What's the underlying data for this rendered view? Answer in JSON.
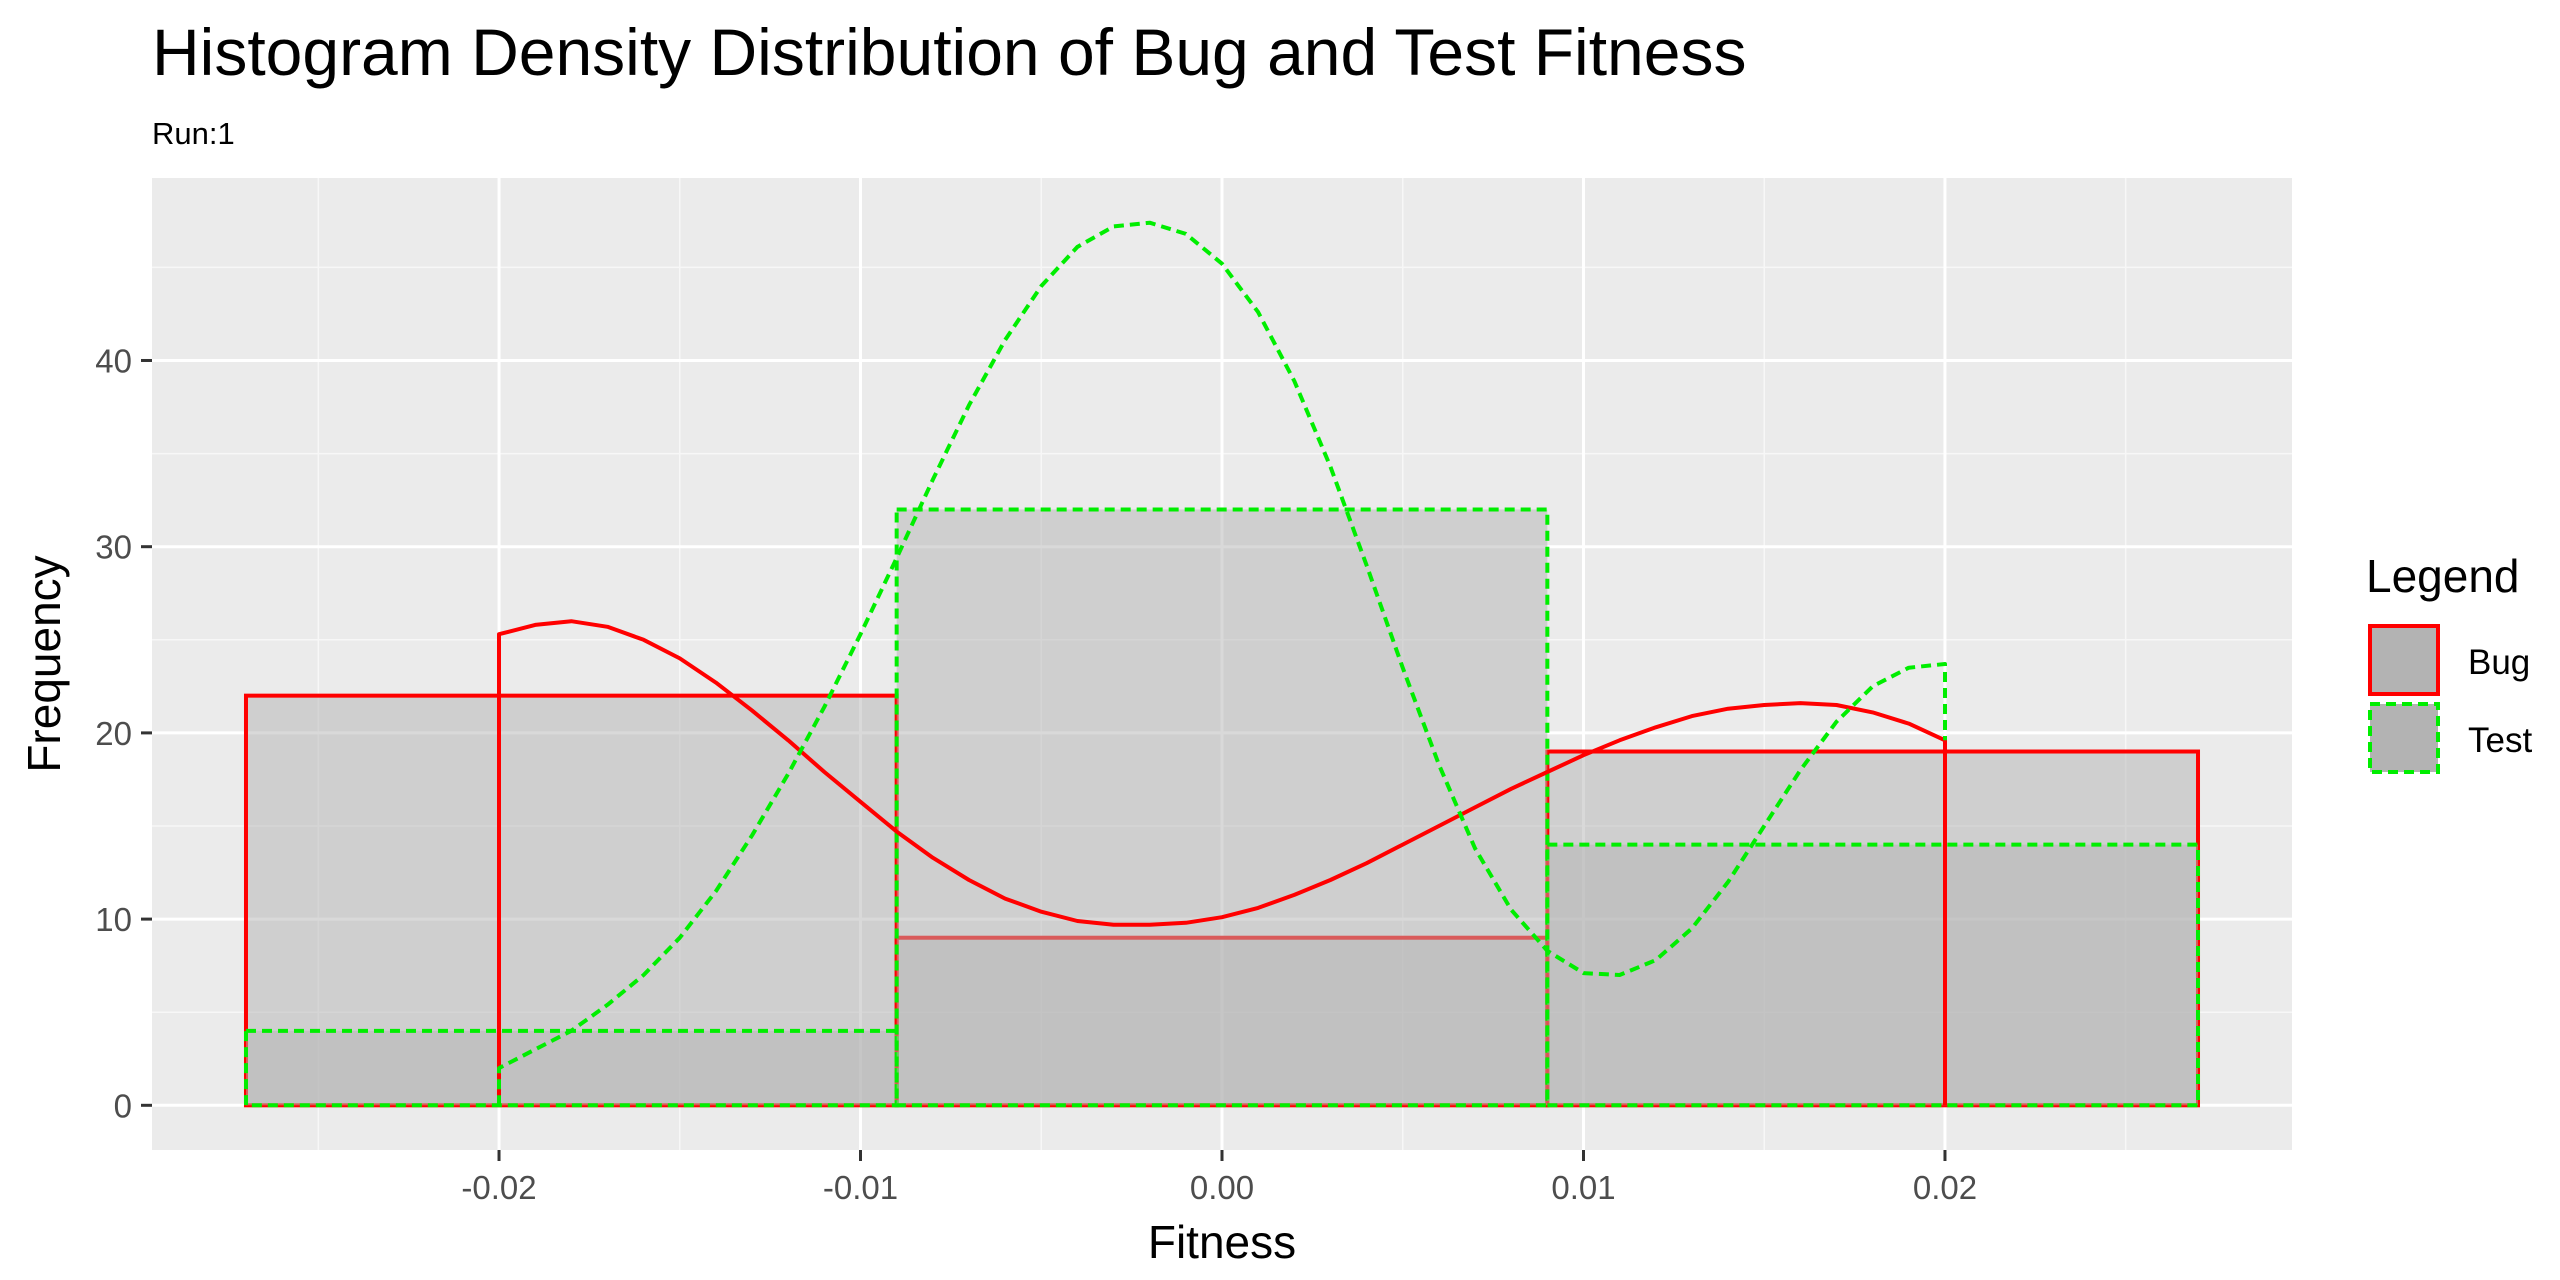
{
  "chart_data": {
    "type": "histogram",
    "title": "Histogram Density Distribution of Bug and Test Fitness",
    "subtitle": "Run:1",
    "xlabel": "Fitness",
    "ylabel": "Frequency",
    "xlim": [
      -0.0296,
      0.0296
    ],
    "ylim": [
      -2.4,
      49.8
    ],
    "x_ticks": [
      -0.02,
      -0.01,
      0.0,
      0.01,
      0.02
    ],
    "x_tick_labels": [
      "-0.02",
      "-0.01",
      "0.00",
      "0.01",
      "0.02"
    ],
    "y_ticks": [
      0,
      10,
      20,
      30,
      40
    ],
    "y_tick_labels": [
      "0",
      "10",
      "20",
      "30",
      "40"
    ],
    "grid": true,
    "legend": {
      "title": "Legend",
      "position": "right",
      "entries": [
        {
          "label": "Bug",
          "color": "#ff0000",
          "linetype": "solid"
        },
        {
          "label": "Test",
          "color": "#00ee00",
          "linetype": "dashed"
        }
      ]
    },
    "bar_fill": "#b3b3b3",
    "series": [
      {
        "name": "Bug",
        "color": "#ff0000",
        "linetype": "solid",
        "bins": [
          {
            "x0": -0.027,
            "x1": -0.009,
            "count": 22
          },
          {
            "x0": -0.009,
            "x1": 0.009,
            "count": 9
          },
          {
            "x0": 0.009,
            "x1": 0.027,
            "count": 19
          }
        ],
        "density_curve": [
          [
            -0.02,
            0.2
          ],
          [
            -0.02,
            25.3
          ],
          [
            -0.019,
            25.8
          ],
          [
            -0.018,
            26.0
          ],
          [
            -0.017,
            25.7
          ],
          [
            -0.016,
            25.0
          ],
          [
            -0.015,
            24.0
          ],
          [
            -0.014,
            22.7
          ],
          [
            -0.013,
            21.2
          ],
          [
            -0.012,
            19.6
          ],
          [
            -0.011,
            17.9
          ],
          [
            -0.01,
            16.3
          ],
          [
            -0.009,
            14.7
          ],
          [
            -0.008,
            13.3
          ],
          [
            -0.007,
            12.1
          ],
          [
            -0.006,
            11.1
          ],
          [
            -0.005,
            10.4
          ],
          [
            -0.004,
            9.9
          ],
          [
            -0.003,
            9.7
          ],
          [
            -0.002,
            9.7
          ],
          [
            -0.001,
            9.8
          ],
          [
            0.0,
            10.1
          ],
          [
            0.001,
            10.6
          ],
          [
            0.002,
            11.3
          ],
          [
            0.003,
            12.1
          ],
          [
            0.004,
            13.0
          ],
          [
            0.005,
            14.0
          ],
          [
            0.006,
            15.0
          ],
          [
            0.007,
            16.0
          ],
          [
            0.008,
            17.0
          ],
          [
            0.009,
            17.9
          ],
          [
            0.01,
            18.8
          ],
          [
            0.011,
            19.6
          ],
          [
            0.012,
            20.3
          ],
          [
            0.013,
            20.9
          ],
          [
            0.014,
            21.3
          ],
          [
            0.015,
            21.5
          ],
          [
            0.016,
            21.6
          ],
          [
            0.017,
            21.5
          ],
          [
            0.018,
            21.1
          ],
          [
            0.019,
            20.5
          ],
          [
            0.02,
            19.6
          ],
          [
            0.02,
            0.0
          ]
        ]
      },
      {
        "name": "Test",
        "color": "#00ee00",
        "linetype": "dashed",
        "bins": [
          {
            "x0": -0.027,
            "x1": -0.009,
            "count": 4
          },
          {
            "x0": -0.009,
            "x1": 0.009,
            "count": 32
          },
          {
            "x0": 0.009,
            "x1": 0.027,
            "count": 14
          }
        ],
        "density_curve": [
          [
            -0.02,
            0.0
          ],
          [
            -0.02,
            2.0
          ],
          [
            -0.019,
            3.0
          ],
          [
            -0.018,
            4.0
          ],
          [
            -0.017,
            5.4
          ],
          [
            -0.016,
            7.0
          ],
          [
            -0.015,
            9.0
          ],
          [
            -0.014,
            11.5
          ],
          [
            -0.013,
            14.5
          ],
          [
            -0.012,
            17.8
          ],
          [
            -0.011,
            21.4
          ],
          [
            -0.01,
            25.3
          ],
          [
            -0.009,
            29.4
          ],
          [
            -0.008,
            33.6
          ],
          [
            -0.007,
            37.6
          ],
          [
            -0.006,
            41.1
          ],
          [
            -0.005,
            44.0
          ],
          [
            -0.004,
            46.1
          ],
          [
            -0.003,
            47.2
          ],
          [
            -0.002,
            47.4
          ],
          [
            -0.001,
            46.8
          ],
          [
            0.0,
            45.2
          ],
          [
            0.001,
            42.6
          ],
          [
            0.002,
            38.9
          ],
          [
            0.003,
            34.3
          ],
          [
            0.004,
            29.0
          ],
          [
            0.005,
            23.5
          ],
          [
            0.006,
            18.3
          ],
          [
            0.007,
            13.8
          ],
          [
            0.008,
            10.5
          ],
          [
            0.009,
            8.3
          ],
          [
            0.01,
            7.1
          ],
          [
            0.011,
            7.0
          ],
          [
            0.012,
            7.8
          ],
          [
            0.013,
            9.5
          ],
          [
            0.014,
            12.0
          ],
          [
            0.015,
            15.0
          ],
          [
            0.016,
            18.0
          ],
          [
            0.017,
            20.6
          ],
          [
            0.018,
            22.5
          ],
          [
            0.019,
            23.5
          ],
          [
            0.02,
            23.7
          ],
          [
            0.02,
            19.6
          ]
        ]
      }
    ]
  }
}
